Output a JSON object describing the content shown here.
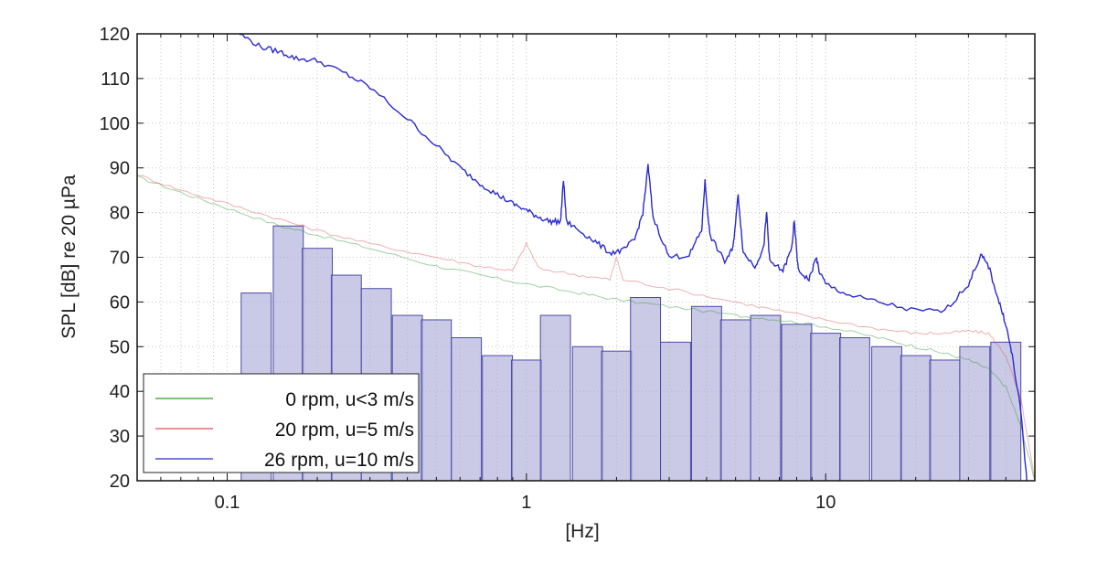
{
  "chart_data": {
    "type": "line",
    "title": "",
    "xlabel": "[Hz]",
    "ylabel": "SPL [dB] re 20 µPa",
    "xscale": "log",
    "xlim": [
      0.05,
      50
    ],
    "ylim": [
      20,
      120
    ],
    "grid": true,
    "x_ticks": [
      {
        "value": 0.1,
        "label": "0.1"
      },
      {
        "value": 1,
        "label": "1"
      },
      {
        "value": 10,
        "label": "10"
      }
    ],
    "y_ticks": [
      {
        "value": 20,
        "label": "20"
      },
      {
        "value": 30,
        "label": "30"
      },
      {
        "value": 40,
        "label": "40"
      },
      {
        "value": 50,
        "label": "50"
      },
      {
        "value": 60,
        "label": "60"
      },
      {
        "value": 70,
        "label": "70"
      },
      {
        "value": 80,
        "label": "80"
      },
      {
        "value": 90,
        "label": "90"
      },
      {
        "value": 100,
        "label": "100"
      },
      {
        "value": 110,
        "label": "110"
      },
      {
        "value": 120,
        "label": "120"
      }
    ],
    "legend_position": "bottom-left",
    "bands": {
      "color": "#a9a9d9",
      "edge_color": "#4a4aa8",
      "center_frequencies": [
        0.125,
        0.16,
        0.2,
        0.25,
        0.315,
        0.4,
        0.5,
        0.63,
        0.8,
        1.0,
        1.25,
        1.6,
        2.0,
        2.5,
        3.15,
        4.0,
        5.0,
        6.3,
        8.0,
        10.0,
        12.5,
        16.0,
        20.0,
        25.0,
        31.5,
        40.0
      ],
      "values": [
        62,
        77,
        72,
        66,
        63,
        57,
        56,
        52,
        48,
        47,
        57,
        50,
        49,
        61,
        51,
        59,
        56,
        57,
        55,
        53,
        52,
        50,
        48,
        47,
        50,
        51
      ]
    },
    "series": [
      {
        "name": "0 rpm, u<3 m/s",
        "color": "#2e9a2e",
        "x": [
          0.05,
          0.07,
          0.1,
          0.15,
          0.2,
          0.3,
          0.5,
          0.7,
          1.0,
          1.5,
          2.0,
          3.0,
          5.0,
          7.0,
          10.0,
          15.0,
          20.0,
          25.0,
          30.0,
          35.0,
          40.0,
          45.0,
          50.0
        ],
        "y": [
          88,
          84.5,
          81,
          77,
          75,
          72,
          68,
          66,
          64,
          62,
          60.5,
          59,
          57,
          56,
          54.5,
          52,
          50,
          48.5,
          47,
          45,
          41,
          32,
          20
        ]
      },
      {
        "name": "20 rpm, u=5 m/s",
        "color": "#e05050",
        "x": [
          0.05,
          0.07,
          0.1,
          0.15,
          0.2,
          0.3,
          0.5,
          0.7,
          0.9,
          1.0,
          1.1,
          1.5,
          1.9,
          2.0,
          2.1,
          3.0,
          5.0,
          7.0,
          10.0,
          15.0,
          20.0,
          25.0,
          30.0,
          35.0,
          40.0,
          45.0,
          50.0
        ],
        "y": [
          88.5,
          85,
          82,
          78.5,
          76,
          73,
          70,
          68,
          67,
          73,
          67.5,
          66,
          65,
          70,
          65,
          63,
          60,
          58,
          56,
          54,
          53,
          53,
          53.5,
          53,
          48,
          38,
          20
        ]
      },
      {
        "name": "26 rpm, u=10 m/s",
        "color": "#2a2ad0",
        "x": [
          0.11,
          0.13,
          0.15,
          0.17,
          0.2,
          0.25,
          0.3,
          0.4,
          0.5,
          0.6,
          0.7,
          0.8,
          0.9,
          1.0,
          1.1,
          1.2,
          1.3,
          1.33,
          1.36,
          1.5,
          1.7,
          1.9,
          2.1,
          2.3,
          2.45,
          2.55,
          2.65,
          3.0,
          3.5,
          3.85,
          3.95,
          4.1,
          4.6,
          4.9,
          5.1,
          5.3,
          5.8,
          6.2,
          6.35,
          6.5,
          7.2,
          7.7,
          7.85,
          8.1,
          8.8,
          9.3,
          9.5,
          10.0,
          12.0,
          15.0,
          20.0,
          25.0,
          30.0,
          33.0,
          35.0,
          38.0,
          40.0,
          42.0,
          45.0,
          47.0
        ],
        "y": [
          120,
          117,
          116,
          114.5,
          114,
          111,
          108,
          101,
          95,
          90,
          86.5,
          84,
          82,
          80.5,
          79,
          78,
          78,
          87.5,
          78,
          76,
          73.5,
          71,
          71.5,
          74,
          80,
          90.5,
          79,
          70,
          70.5,
          76,
          87,
          75,
          69,
          72,
          84,
          71,
          68,
          72,
          80,
          69,
          67,
          72,
          78,
          67,
          65,
          70,
          67,
          64,
          61.5,
          60,
          58,
          58,
          64,
          70.5,
          68,
          60,
          55,
          48,
          35,
          20
        ]
      }
    ]
  }
}
